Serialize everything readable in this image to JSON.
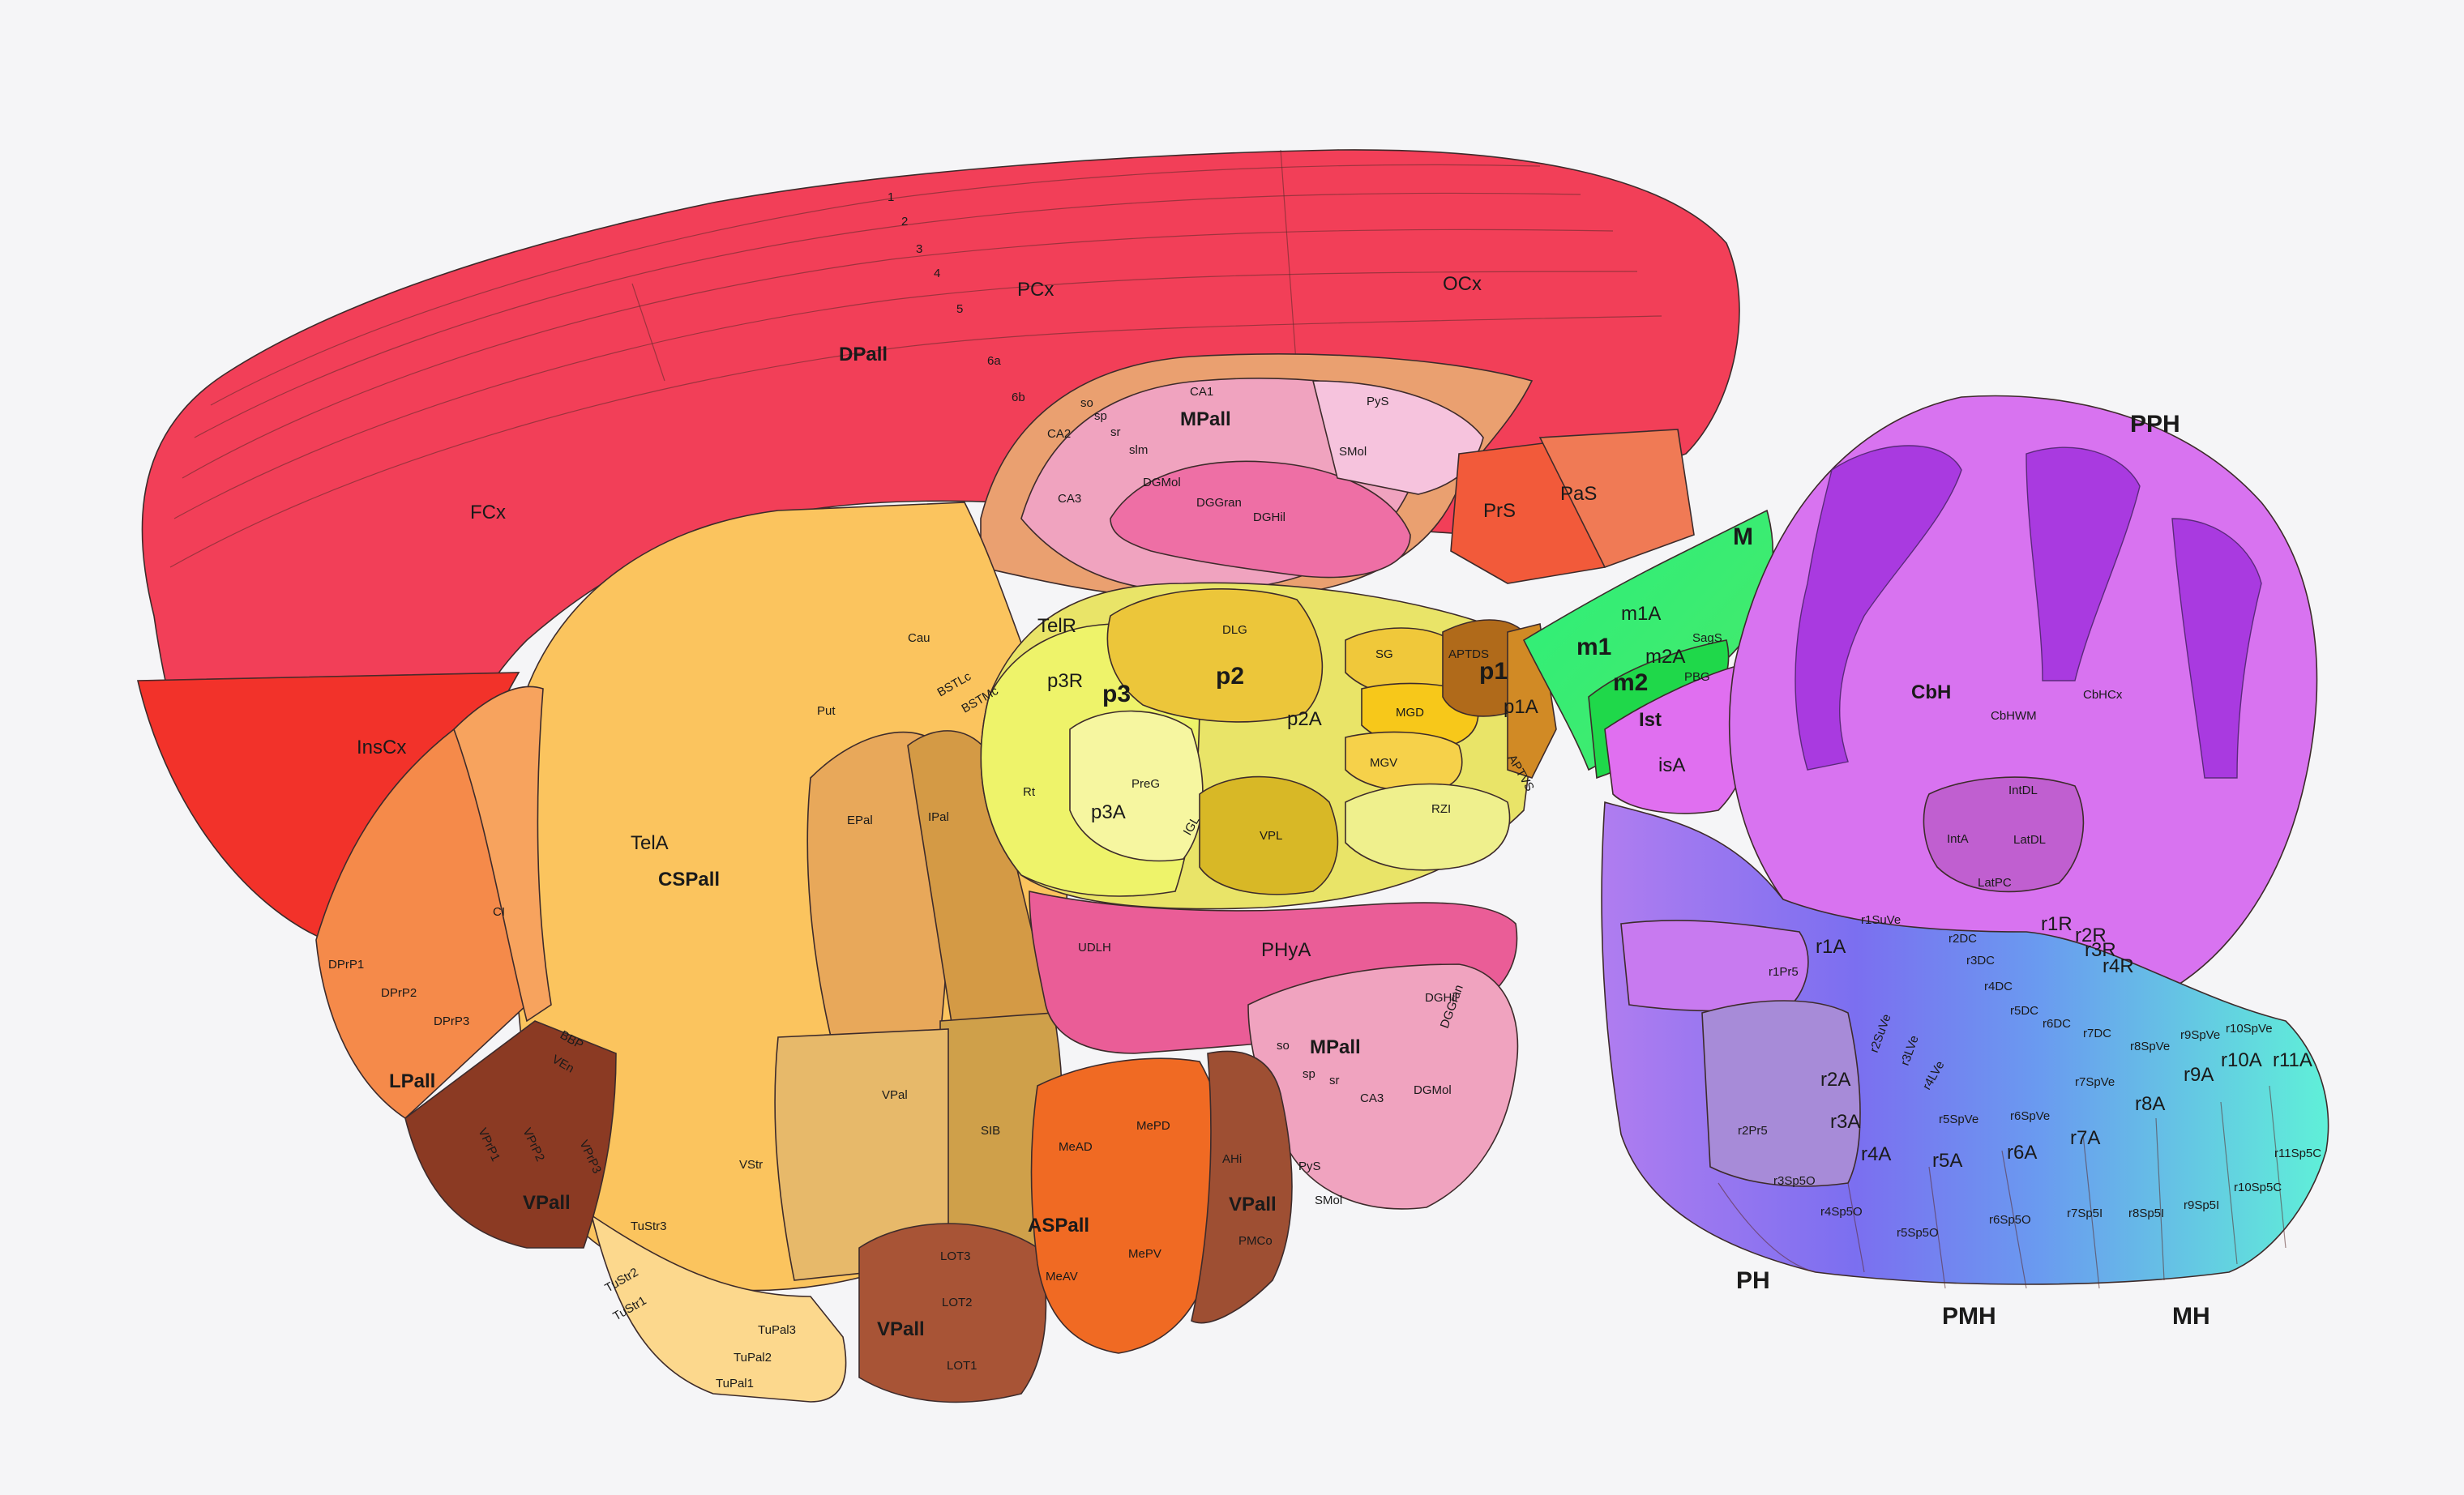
{
  "figure": "sagittal-brain-atlas",
  "colors": {
    "cortex": "#f23f58",
    "insular": "#f2322a",
    "hippocampus": "#f0a3bf",
    "striatum": "#fbc45e",
    "thalamus": "#e9e468",
    "pretectum": "#d8b826",
    "midbrain": "#3cf07a",
    "cerebellum": "#d873f0",
    "hindbrain_blue": "#7f7df0",
    "hindbrain_cyan": "#5fe3e0",
    "hypothalamus": "#ea5d97",
    "amygdala": "#f06a23",
    "ventral_pallium": "#8b3a23"
  },
  "labels": {
    "pcx": "PCx",
    "ocx": "OCx",
    "dpall": "DPall",
    "fcx": "FCx",
    "inscx": "InsCx",
    "l1": "1",
    "l2": "2",
    "l3": "3",
    "l4": "4",
    "l5": "5",
    "l6a": "6a",
    "l6b": "6b",
    "ca1": "CA1",
    "mpall": "MPall",
    "pys": "PyS",
    "so": "so",
    "sp": "sp",
    "sr": "sr",
    "slm": "slm",
    "ca2": "CA2",
    "ca3": "CA3",
    "dgmol": "DGMol",
    "dggran": "DGGran",
    "dghil": "DGHil",
    "smol": "SMol",
    "prs": "PrS",
    "pas": "PaS",
    "cau": "Cau",
    "put": "Put",
    "tela": "TelA",
    "cspall": "CSPall",
    "epal": "EPal",
    "ipal": "IPal",
    "bstlc": "BSTLc",
    "bstmc": "BSTMc",
    "telr": "TelR",
    "p3r": "p3R",
    "p3": "p3",
    "p2": "p2",
    "dlg": "DLG",
    "sg": "SG",
    "aptds": "APTDS",
    "p1": "p1",
    "p1a": "p1A",
    "mgd": "MGD",
    "mgv": "MGV",
    "p2a": "p2A",
    "rt": "Rt",
    "preg": "PreG",
    "p3a": "p3A",
    "igl": "IGL",
    "vpl": "VPL",
    "rzi": "RZI",
    "aptvs": "APTVS",
    "m1": "m1",
    "m1a": "m1A",
    "m2": "m2",
    "m2a": "m2A",
    "sags": "SagS",
    "pbg": "PBG",
    "ist": "Ist",
    "isa": "isA",
    "m": "M",
    "ci": "CI",
    "dprp1": "DPrP1",
    "dprp2": "DPrP2",
    "dprp3": "DPrP3",
    "lpall": "LPall",
    "bbp": "BBP",
    "ven": "VEn",
    "vprp1": "VPrP1",
    "vprp2": "VPrP2",
    "vprp3": "VPrP3",
    "vpall": "VPall",
    "tustr3": "TuStr3",
    "tustr2": "TuStr2",
    "tustr1": "TuStr1",
    "vstr": "VStr",
    "vpal": "VPal",
    "sib": "SIB",
    "tupal3": "TuPal3",
    "tupal2": "TuPal2",
    "tupal1": "TuPal1",
    "lot3": "LOT3",
    "lot2": "LOT2",
    "lot1": "LOT1",
    "udlh": "UDLH",
    "phya": "PHyA",
    "mead": "MeAD",
    "mepd": "MePD",
    "meav": "MeAV",
    "mepv": "MePV",
    "aspall": "ASPall",
    "ahi": "AHi",
    "pmco": "PMCo",
    "pph": "PPH",
    "cbh": "CbH",
    "cbhwm": "CbHWM",
    "cbhcx": "CbHCx",
    "intdl": "IntDL",
    "inta": "IntA",
    "latdl": "LatDL",
    "latpc": "LatPC",
    "r1suve": "r1SuVe",
    "r1a": "r1A",
    "r1pr5": "r1Pr5",
    "r2dc": "r2DC",
    "r3dc": "r3DC",
    "r4dc": "r4DC",
    "r5dc": "r5DC",
    "r6dc": "r6DC",
    "r7dc": "r7DC",
    "r1r": "r1R",
    "r2r": "r2R",
    "r3r": "r3R",
    "r4r": "r4R",
    "r2suve": "r2SuVe",
    "r3lve": "r3LVe",
    "r4lve": "r4LVe",
    "r5spve": "r5SpVe",
    "r6spve": "r6SpVe",
    "r7spve": "r7SpVe",
    "r8spve": "r8SpVe",
    "r9spve": "r9SpVe",
    "r10spve": "r10SpVe",
    "r2a": "r2A",
    "r3a": "r3A",
    "r4a": "r4A",
    "r5a": "r5A",
    "r6a": "r6A",
    "r7a": "r7A",
    "r8a": "r8A",
    "r9a": "r9A",
    "r10a": "r10A",
    "r11a": "r11A",
    "r2pr5": "r2Pr5",
    "r3sp5o": "r3Sp5O",
    "r4sp5o": "r4Sp5O",
    "r5sp5o": "r5Sp5O",
    "r6sp5o": "r6Sp5O",
    "r7sp5i": "r7Sp5I",
    "r8sp5i": "r8Sp5I",
    "r9sp5i": "r9Sp5I",
    "r10sp5c": "r10Sp5C",
    "r11sp5c": "r11Sp5C",
    "ph": "PH",
    "pmh": "PMH",
    "mh": "MH"
  }
}
